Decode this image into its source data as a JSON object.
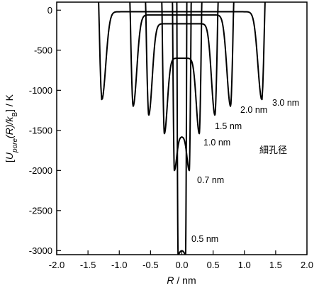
{
  "chart_data": {
    "type": "line",
    "xlabel": "R / nm",
    "ylabel": "[Upore(R)/kB] / K",
    "ylabel_parts": {
      "open": "[",
      "U": "U",
      "sub1": "pore",
      "mid": "(R)/k",
      "sub2": "B",
      "close": "] / K"
    },
    "xlabel_parts": {
      "R": "R",
      "rest": " / nm"
    },
    "xlim": [
      -2.0,
      2.0
    ],
    "ylim": [
      -3050,
      100
    ],
    "xticks": [
      -2.0,
      -1.5,
      -1.0,
      -0.5,
      0.0,
      0.5,
      1.0,
      1.5,
      2.0
    ],
    "xtick_labels": [
      "-2.0",
      "-1.5",
      "-1.0",
      "-0.5",
      "0.0",
      "0.5",
      "1.0",
      "1.5",
      "2.0"
    ],
    "yticks": [
      0,
      -500,
      -1000,
      -1500,
      -2000,
      -2500,
      -3000
    ],
    "ytick_labels": [
      "0",
      "-500",
      "-1000",
      "-1500",
      "-2000",
      "-2500",
      "-3000"
    ],
    "annotation": "細孔径",
    "series": [
      {
        "name": "0.5 nm",
        "label": "0.5 nm",
        "a": 0.06,
        "d": 0.028,
        "wall": 0.08,
        "center": -3000,
        "min": -3050
      },
      {
        "name": "0.7 nm",
        "label": "0.7 nm",
        "a": 0.12,
        "d": 0.05,
        "wall": 0.15,
        "center": -1580,
        "min": -2000
      },
      {
        "name": "1.0 nm",
        "label": "1.0 nm",
        "a": 0.28,
        "d": 0.065,
        "wall": 0.32,
        "center": -600,
        "min": -1540
      },
      {
        "name": "1.5 nm",
        "label": "1.5 nm",
        "a": 0.53,
        "d": 0.075,
        "wall": 0.58,
        "center": -170,
        "min": -1310
      },
      {
        "name": "2.0 nm",
        "label": "2.0 nm",
        "a": 0.78,
        "d": 0.08,
        "wall": 0.83,
        "center": -60,
        "min": -1200
      },
      {
        "name": "3.0 nm",
        "label": "3.0 nm",
        "a": 1.28,
        "d": 0.085,
        "wall": 1.33,
        "center": -20,
        "min": -1120
      }
    ]
  }
}
